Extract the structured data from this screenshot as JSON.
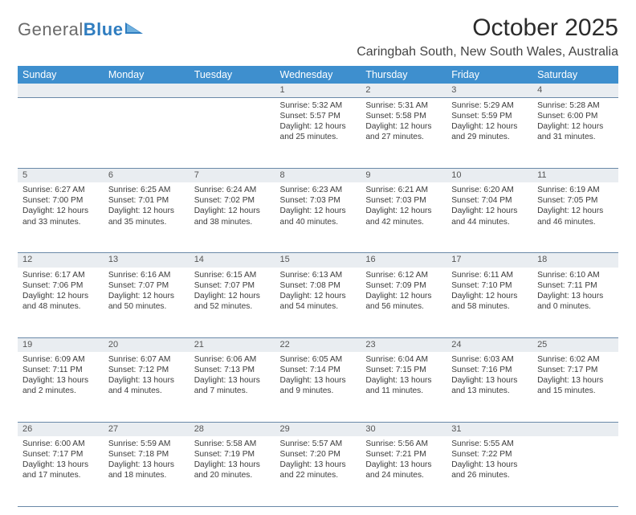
{
  "branding": {
    "logo_general": "General",
    "logo_blue": "Blue",
    "logo_mark_color": "#2f7dc0"
  },
  "header": {
    "month_title": "October 2025",
    "location": "Caringbah South, New South Wales, Australia"
  },
  "style": {
    "header_bg": "#3e8fce",
    "daynum_bg": "#e9edf1",
    "border_color": "#6a89a8"
  },
  "day_headers": [
    "Sunday",
    "Monday",
    "Tuesday",
    "Wednesday",
    "Thursday",
    "Friday",
    "Saturday"
  ],
  "weeks": [
    {
      "nums": [
        "",
        "",
        "",
        "1",
        "2",
        "3",
        "4"
      ],
      "cells": [
        {
          "sunrise": "",
          "sunset": "",
          "daylight": ""
        },
        {
          "sunrise": "",
          "sunset": "",
          "daylight": ""
        },
        {
          "sunrise": "",
          "sunset": "",
          "daylight": ""
        },
        {
          "sunrise": "Sunrise: 5:32 AM",
          "sunset": "Sunset: 5:57 PM",
          "daylight": "Daylight: 12 hours and 25 minutes."
        },
        {
          "sunrise": "Sunrise: 5:31 AM",
          "sunset": "Sunset: 5:58 PM",
          "daylight": "Daylight: 12 hours and 27 minutes."
        },
        {
          "sunrise": "Sunrise: 5:29 AM",
          "sunset": "Sunset: 5:59 PM",
          "daylight": "Daylight: 12 hours and 29 minutes."
        },
        {
          "sunrise": "Sunrise: 5:28 AM",
          "sunset": "Sunset: 6:00 PM",
          "daylight": "Daylight: 12 hours and 31 minutes."
        }
      ]
    },
    {
      "nums": [
        "5",
        "6",
        "7",
        "8",
        "9",
        "10",
        "11"
      ],
      "cells": [
        {
          "sunrise": "Sunrise: 6:27 AM",
          "sunset": "Sunset: 7:00 PM",
          "daylight": "Daylight: 12 hours and 33 minutes."
        },
        {
          "sunrise": "Sunrise: 6:25 AM",
          "sunset": "Sunset: 7:01 PM",
          "daylight": "Daylight: 12 hours and 35 minutes."
        },
        {
          "sunrise": "Sunrise: 6:24 AM",
          "sunset": "Sunset: 7:02 PM",
          "daylight": "Daylight: 12 hours and 38 minutes."
        },
        {
          "sunrise": "Sunrise: 6:23 AM",
          "sunset": "Sunset: 7:03 PM",
          "daylight": "Daylight: 12 hours and 40 minutes."
        },
        {
          "sunrise": "Sunrise: 6:21 AM",
          "sunset": "Sunset: 7:03 PM",
          "daylight": "Daylight: 12 hours and 42 minutes."
        },
        {
          "sunrise": "Sunrise: 6:20 AM",
          "sunset": "Sunset: 7:04 PM",
          "daylight": "Daylight: 12 hours and 44 minutes."
        },
        {
          "sunrise": "Sunrise: 6:19 AM",
          "sunset": "Sunset: 7:05 PM",
          "daylight": "Daylight: 12 hours and 46 minutes."
        }
      ]
    },
    {
      "nums": [
        "12",
        "13",
        "14",
        "15",
        "16",
        "17",
        "18"
      ],
      "cells": [
        {
          "sunrise": "Sunrise: 6:17 AM",
          "sunset": "Sunset: 7:06 PM",
          "daylight": "Daylight: 12 hours and 48 minutes."
        },
        {
          "sunrise": "Sunrise: 6:16 AM",
          "sunset": "Sunset: 7:07 PM",
          "daylight": "Daylight: 12 hours and 50 minutes."
        },
        {
          "sunrise": "Sunrise: 6:15 AM",
          "sunset": "Sunset: 7:07 PM",
          "daylight": "Daylight: 12 hours and 52 minutes."
        },
        {
          "sunrise": "Sunrise: 6:13 AM",
          "sunset": "Sunset: 7:08 PM",
          "daylight": "Daylight: 12 hours and 54 minutes."
        },
        {
          "sunrise": "Sunrise: 6:12 AM",
          "sunset": "Sunset: 7:09 PM",
          "daylight": "Daylight: 12 hours and 56 minutes."
        },
        {
          "sunrise": "Sunrise: 6:11 AM",
          "sunset": "Sunset: 7:10 PM",
          "daylight": "Daylight: 12 hours and 58 minutes."
        },
        {
          "sunrise": "Sunrise: 6:10 AM",
          "sunset": "Sunset: 7:11 PM",
          "daylight": "Daylight: 13 hours and 0 minutes."
        }
      ]
    },
    {
      "nums": [
        "19",
        "20",
        "21",
        "22",
        "23",
        "24",
        "25"
      ],
      "cells": [
        {
          "sunrise": "Sunrise: 6:09 AM",
          "sunset": "Sunset: 7:11 PM",
          "daylight": "Daylight: 13 hours and 2 minutes."
        },
        {
          "sunrise": "Sunrise: 6:07 AM",
          "sunset": "Sunset: 7:12 PM",
          "daylight": "Daylight: 13 hours and 4 minutes."
        },
        {
          "sunrise": "Sunrise: 6:06 AM",
          "sunset": "Sunset: 7:13 PM",
          "daylight": "Daylight: 13 hours and 7 minutes."
        },
        {
          "sunrise": "Sunrise: 6:05 AM",
          "sunset": "Sunset: 7:14 PM",
          "daylight": "Daylight: 13 hours and 9 minutes."
        },
        {
          "sunrise": "Sunrise: 6:04 AM",
          "sunset": "Sunset: 7:15 PM",
          "daylight": "Daylight: 13 hours and 11 minutes."
        },
        {
          "sunrise": "Sunrise: 6:03 AM",
          "sunset": "Sunset: 7:16 PM",
          "daylight": "Daylight: 13 hours and 13 minutes."
        },
        {
          "sunrise": "Sunrise: 6:02 AM",
          "sunset": "Sunset: 7:17 PM",
          "daylight": "Daylight: 13 hours and 15 minutes."
        }
      ]
    },
    {
      "nums": [
        "26",
        "27",
        "28",
        "29",
        "30",
        "31",
        ""
      ],
      "cells": [
        {
          "sunrise": "Sunrise: 6:00 AM",
          "sunset": "Sunset: 7:17 PM",
          "daylight": "Daylight: 13 hours and 17 minutes."
        },
        {
          "sunrise": "Sunrise: 5:59 AM",
          "sunset": "Sunset: 7:18 PM",
          "daylight": "Daylight: 13 hours and 18 minutes."
        },
        {
          "sunrise": "Sunrise: 5:58 AM",
          "sunset": "Sunset: 7:19 PM",
          "daylight": "Daylight: 13 hours and 20 minutes."
        },
        {
          "sunrise": "Sunrise: 5:57 AM",
          "sunset": "Sunset: 7:20 PM",
          "daylight": "Daylight: 13 hours and 22 minutes."
        },
        {
          "sunrise": "Sunrise: 5:56 AM",
          "sunset": "Sunset: 7:21 PM",
          "daylight": "Daylight: 13 hours and 24 minutes."
        },
        {
          "sunrise": "Sunrise: 5:55 AM",
          "sunset": "Sunset: 7:22 PM",
          "daylight": "Daylight: 13 hours and 26 minutes."
        },
        {
          "sunrise": "",
          "sunset": "",
          "daylight": ""
        }
      ]
    }
  ]
}
